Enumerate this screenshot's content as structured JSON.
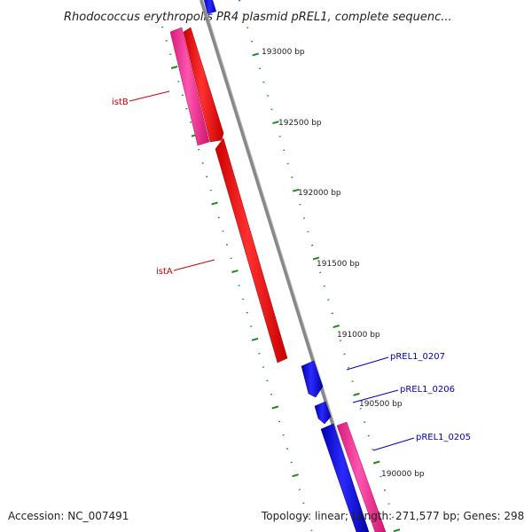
{
  "title": "Rhodococcus erythropolis PR4 plasmid pREL1, complete sequenc...",
  "footer": {
    "accession": "Accession: NC_007491",
    "summary": "Topology: linear; Length: 271,577 bp; Genes: 298"
  },
  "colors": {
    "red_gene": "#ff0000",
    "pink_gene": "#ff3399",
    "blue_gene": "#0000ee",
    "backbone": "#888888",
    "tick": "#1a8a1a",
    "red_label": "#cc0000",
    "blue_label": "#0000bb"
  },
  "ticks": [
    {
      "label": "193000 bp"
    },
    {
      "label": "192500 bp"
    },
    {
      "label": "192000 bp"
    },
    {
      "label": "191500 bp"
    },
    {
      "label": "191000 bp"
    },
    {
      "label": "190500 bp"
    },
    {
      "label": "190000 bp"
    }
  ],
  "gene_labels": [
    {
      "text": "istB",
      "color": "red"
    },
    {
      "text": "istA",
      "color": "red"
    },
    {
      "text": "pREL1_0207",
      "color": "blue"
    },
    {
      "text": "pREL1_0206",
      "color": "blue"
    },
    {
      "text": "pREL1_0205",
      "color": "blue"
    }
  ]
}
